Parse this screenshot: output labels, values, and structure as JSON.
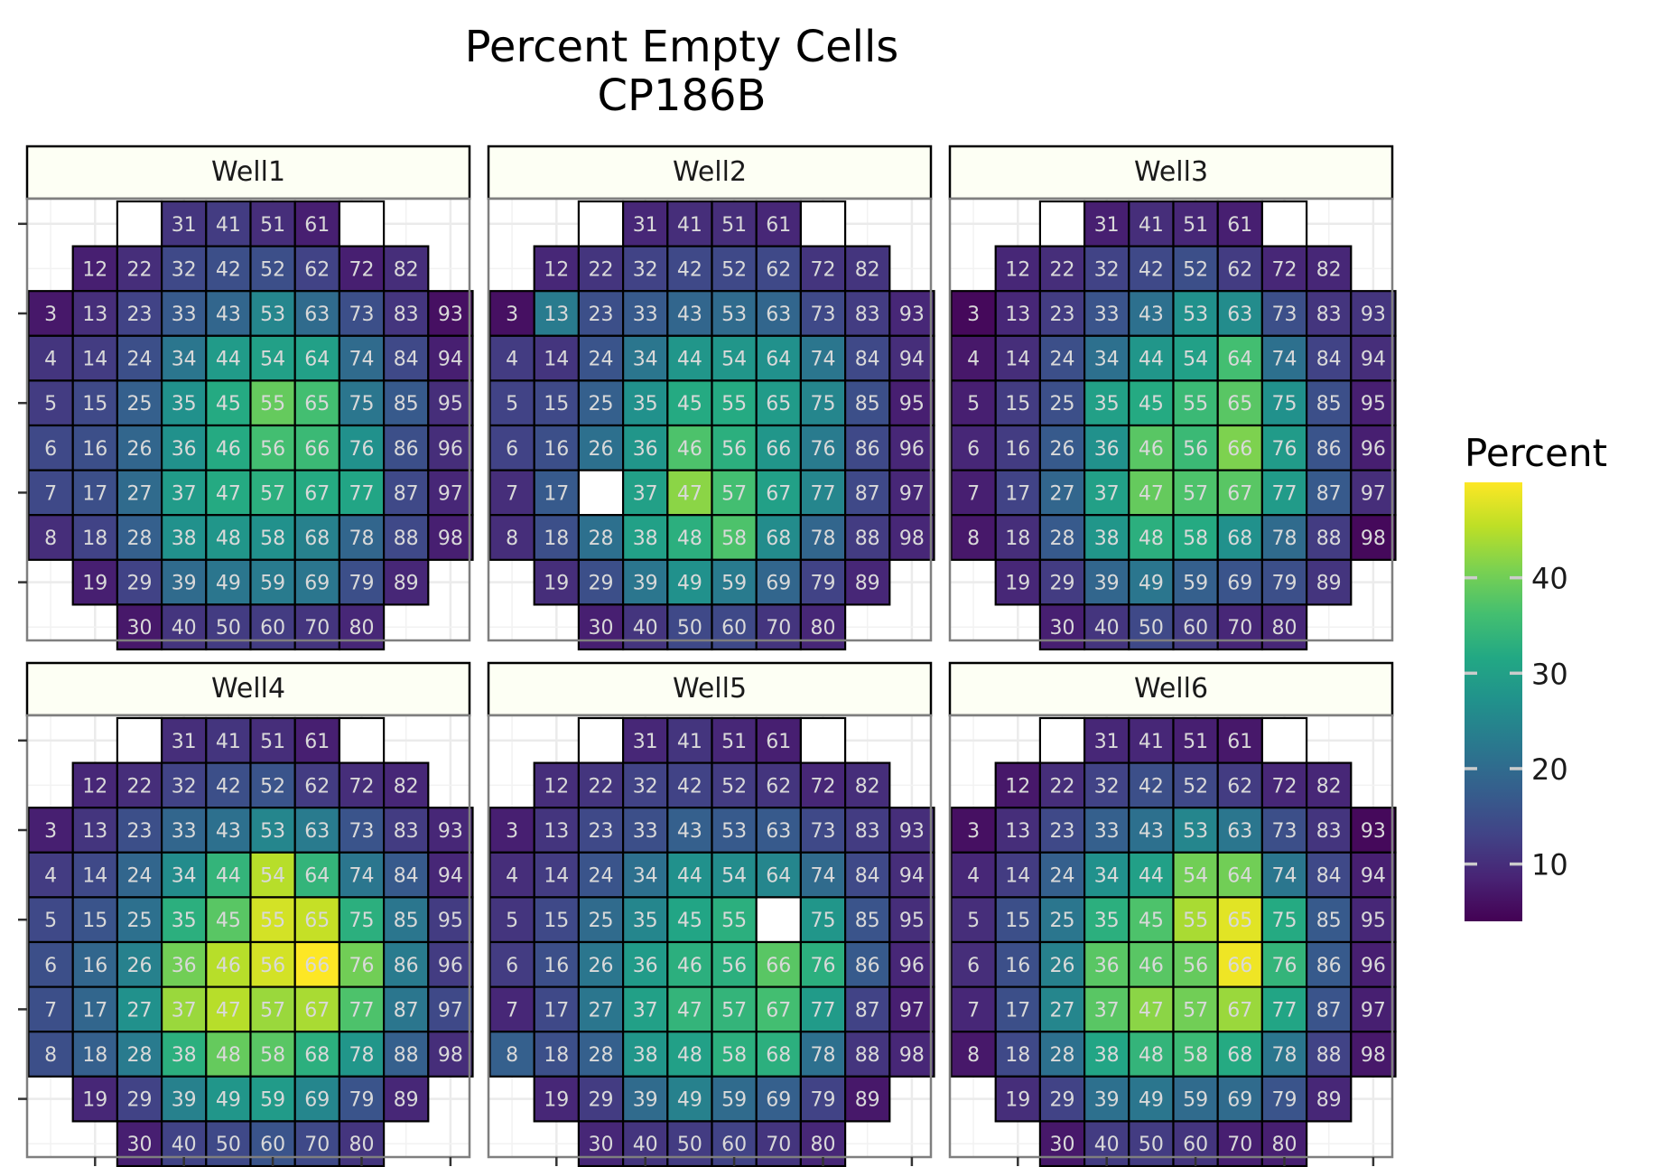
{
  "chart_data": {
    "type": "heatmap",
    "title": "Percent Empty Cells",
    "subtitle": "CP186B",
    "legend": {
      "title": "Percent",
      "placement": "right",
      "range": [
        4,
        50
      ],
      "ticks": [
        10,
        20,
        30,
        40
      ],
      "colors": [
        "#440154",
        "#482475",
        "#414487",
        "#355f8d",
        "#2a788e",
        "#21918c",
        "#22a884",
        "#44bf70",
        "#7ad151",
        "#bddf26",
        "#fde725"
      ]
    },
    "empty_color": "#ffffff",
    "strip_fill": "#fdfff4",
    "layout": {
      "columns": [
        1,
        2,
        3,
        4,
        5,
        6,
        7,
        8,
        9,
        10
      ],
      "rows": [
        1,
        2,
        3,
        4,
        5,
        6,
        7,
        8,
        9,
        10
      ],
      "rows_per_column": {
        "1": [
          3,
          4,
          5,
          6,
          7,
          8
        ],
        "2": [
          2,
          3,
          4,
          5,
          6,
          7,
          8,
          9
        ],
        "3": [
          1,
          2,
          3,
          4,
          5,
          6,
          7,
          8,
          9,
          10
        ],
        "4": [
          1,
          2,
          3,
          4,
          5,
          6,
          7,
          8,
          9,
          10
        ],
        "5": [
          1,
          2,
          3,
          4,
          5,
          6,
          7,
          8,
          9,
          10
        ],
        "6": [
          1,
          2,
          3,
          4,
          5,
          6,
          7,
          8,
          9,
          10
        ],
        "7": [
          1,
          2,
          3,
          4,
          5,
          6,
          7,
          8,
          9,
          10
        ],
        "8": [
          1,
          2,
          3,
          4,
          5,
          6,
          7,
          8,
          9,
          10
        ],
        "9": [
          2,
          3,
          4,
          5,
          6,
          7,
          8,
          9
        ],
        "10": [
          3,
          4,
          5,
          6,
          7,
          8
        ]
      }
    },
    "wells": [
      {
        "name": "Well1",
        "values": {
          "3": 7,
          "4": 11,
          "5": 12,
          "6": 14,
          "7": 14,
          "8": 10,
          "12": 8,
          "13": 10,
          "14": 12,
          "15": 14,
          "16": 15,
          "17": 15,
          "18": 13,
          "19": 8,
          "22": 10,
          "23": 13,
          "24": 15,
          "25": 18,
          "26": 19,
          "27": 20,
          "28": 18,
          "29": 13,
          "30": 7,
          "31": 11,
          "32": 14,
          "33": 17,
          "34": 22,
          "35": 27,
          "36": 27,
          "37": 29,
          "38": 27,
          "39": 20,
          "40": 11,
          "41": 12,
          "42": 15,
          "43": 19,
          "44": 29,
          "45": 32,
          "46": 32,
          "47": 32,
          "48": 28,
          "49": 22,
          "50": 12,
          "51": 10,
          "52": 15,
          "53": 25,
          "54": 30,
          "55": 39,
          "56": 36,
          "57": 33,
          "58": 27,
          "59": 23,
          "60": 12,
          "61": 8,
          "62": 13,
          "63": 20,
          "64": 30,
          "65": 36,
          "66": 35,
          "67": 32,
          "68": 24,
          "69": 22,
          "70": 11,
          "72": 8,
          "73": 15,
          "74": 20,
          "75": 22,
          "76": 27,
          "77": 31,
          "78": 19,
          "79": 15,
          "80": 9,
          "82": 10,
          "83": 11,
          "84": 14,
          "85": 17,
          "86": 15,
          "87": 14,
          "88": 14,
          "89": 9,
          "93": 6,
          "94": 8,
          "95": 10,
          "96": 10,
          "97": 9,
          "98": 8
        }
      },
      {
        "name": "Well2",
        "values": {
          "3": 6,
          "4": 12,
          "5": 13,
          "6": 13,
          "7": 10,
          "8": 10,
          "12": 9,
          "13": 23,
          "14": 11,
          "15": 14,
          "16": 15,
          "17": 17,
          "18": 15,
          "19": 10,
          "22": 11,
          "23": 15,
          "24": 16,
          "25": 18,
          "26": 21,
          "27": null,
          "28": 21,
          "29": 15,
          "30": 8,
          "31": 9,
          "32": 13,
          "33": 17,
          "34": 22,
          "35": 27,
          "36": 28,
          "37": 30,
          "38": 30,
          "39": 22,
          "40": 11,
          "41": 10,
          "42": 14,
          "43": 19,
          "44": 28,
          "45": 32,
          "46": 37,
          "47": 42,
          "48": 33,
          "49": 27,
          "50": 14,
          "51": 10,
          "52": 14,
          "53": 20,
          "54": 28,
          "55": 32,
          "56": 33,
          "57": 36,
          "58": 37,
          "59": 23,
          "60": 14,
          "61": 9,
          "62": 14,
          "63": 19,
          "64": 27,
          "65": 29,
          "66": 28,
          "67": 30,
          "68": 26,
          "69": 19,
          "70": 11,
          "72": 11,
          "73": 14,
          "74": 22,
          "75": 25,
          "76": 23,
          "77": 25,
          "78": 19,
          "79": 13,
          "80": 9,
          "82": 11,
          "83": 12,
          "84": 14,
          "85": 15,
          "86": 14,
          "87": 14,
          "88": 12,
          "89": 9,
          "93": 9,
          "94": 10,
          "95": 8,
          "96": 9,
          "97": 9,
          "98": 9
        }
      },
      {
        "name": "Well3",
        "values": {
          "3": 5,
          "4": 7,
          "5": 8,
          "6": 9,
          "7": 8,
          "8": 7,
          "12": 9,
          "13": 9,
          "14": 10,
          "15": 12,
          "16": 12,
          "17": 13,
          "18": 10,
          "19": 9,
          "22": 10,
          "23": 12,
          "24": 15,
          "25": 15,
          "26": 17,
          "27": 19,
          "28": 17,
          "29": 12,
          "30": 8,
          "31": 8,
          "32": 13,
          "33": 16,
          "34": 21,
          "35": 30,
          "36": 27,
          "37": 30,
          "38": 28,
          "39": 19,
          "40": 11,
          "41": 10,
          "42": 14,
          "43": 21,
          "44": 28,
          "45": 32,
          "46": 38,
          "47": 39,
          "48": 33,
          "49": 22,
          "50": 14,
          "51": 9,
          "52": 15,
          "53": 27,
          "54": 30,
          "55": 35,
          "56": 35,
          "57": 37,
          "58": 32,
          "59": 18,
          "60": 12,
          "61": 8,
          "62": 12,
          "63": 26,
          "64": 36,
          "65": 38,
          "66": 41,
          "67": 38,
          "68": 27,
          "69": 16,
          "70": 9,
          "72": 9,
          "73": 15,
          "74": 21,
          "75": 27,
          "76": 29,
          "77": 29,
          "78": 20,
          "79": 15,
          "80": 9,
          "82": 9,
          "83": 11,
          "84": 13,
          "85": 15,
          "86": 16,
          "87": 17,
          "88": 12,
          "89": 11,
          "93": 11,
          "94": 10,
          "95": 8,
          "96": 8,
          "97": 10,
          "98": 5
        }
      },
      {
        "name": "Well4",
        "values": {
          "3": 8,
          "4": 12,
          "5": 14,
          "6": 15,
          "7": 15,
          "8": 15,
          "12": 9,
          "13": 11,
          "14": 14,
          "15": 16,
          "16": 19,
          "17": 19,
          "18": 18,
          "19": 9,
          "22": 10,
          "23": 15,
          "24": 19,
          "25": 21,
          "26": 24,
          "27": 27,
          "28": 23,
          "29": 13,
          "30": 8,
          "31": 10,
          "32": 13,
          "33": 19,
          "34": 26,
          "35": 33,
          "36": 40,
          "37": 43,
          "38": 33,
          "39": 24,
          "40": 13,
          "41": 11,
          "42": 15,
          "43": 21,
          "44": 34,
          "45": 38,
          "46": 45,
          "47": 45,
          "48": 39,
          "49": 28,
          "50": 14,
          "51": 10,
          "52": 16,
          "53": 25,
          "54": 45,
          "55": 47,
          "56": 47,
          "57": 43,
          "58": 38,
          "59": 29,
          "60": 16,
          "61": 8,
          "62": 12,
          "63": 23,
          "64": 34,
          "65": 46,
          "66": 50,
          "67": 44,
          "68": 33,
          "69": 25,
          "70": 14,
          "72": 10,
          "73": 16,
          "74": 22,
          "75": 33,
          "76": 40,
          "77": 37,
          "78": 28,
          "79": 16,
          "80": 11,
          "82": 9,
          "83": 12,
          "84": 17,
          "85": 22,
          "86": 23,
          "87": 22,
          "88": 18,
          "89": 9,
          "93": 9,
          "94": 9,
          "95": 12,
          "96": 12,
          "97": 14,
          "98": 10
        }
      },
      {
        "name": "Well5",
        "values": {
          "3": 8,
          "4": 10,
          "5": 11,
          "6": 12,
          "7": 9,
          "8": 18,
          "12": 10,
          "13": 11,
          "14": 12,
          "15": 14,
          "16": 15,
          "17": 14,
          "18": 15,
          "19": 9,
          "22": 11,
          "23": 14,
          "24": 16,
          "25": 20,
          "26": 22,
          "27": 22,
          "28": 18,
          "29": 12,
          "30": 9,
          "31": 9,
          "32": 13,
          "33": 15,
          "34": 21,
          "35": 25,
          "36": 29,
          "37": 30,
          "38": 28,
          "39": 20,
          "40": 11,
          "41": 11,
          "42": 13,
          "43": 18,
          "44": 27,
          "45": 31,
          "46": 33,
          "47": 34,
          "48": 30,
          "49": 24,
          "50": 12,
          "51": 9,
          "52": 12,
          "53": 17,
          "54": 26,
          "55": 33,
          "56": 33,
          "57": 34,
          "58": 33,
          "59": 20,
          "60": 13,
          "61": 8,
          "62": 11,
          "63": 17,
          "64": 25,
          "65": null,
          "66": 38,
          "67": 36,
          "68": 33,
          "69": 18,
          "70": 11,
          "72": 9,
          "73": 14,
          "74": 20,
          "75": 28,
          "76": 33,
          "77": 29,
          "78": 21,
          "79": 13,
          "80": 9,
          "82": 10,
          "83": 12,
          "84": 14,
          "85": 16,
          "86": 17,
          "87": 13,
          "88": 11,
          "89": 7,
          "93": 10,
          "94": 10,
          "95": 10,
          "96": 9,
          "97": 8,
          "98": 9
        }
      },
      {
        "name": "Well6",
        "values": {
          "3": 6,
          "4": 9,
          "5": 10,
          "6": 10,
          "7": 9,
          "8": 7,
          "12": 7,
          "13": 10,
          "14": 12,
          "15": 15,
          "16": 15,
          "17": 15,
          "18": 14,
          "19": 10,
          "22": 10,
          "23": 14,
          "24": 18,
          "25": 22,
          "26": 24,
          "27": 25,
          "28": 21,
          "29": 13,
          "30": 7,
          "31": 9,
          "32": 13,
          "33": 18,
          "34": 27,
          "35": 33,
          "36": 38,
          "37": 38,
          "38": 31,
          "39": 21,
          "40": 12,
          "41": 9,
          "42": 15,
          "43": 21,
          "44": 30,
          "45": 37,
          "46": 38,
          "47": 42,
          "48": 34,
          "49": 22,
          "50": 12,
          "51": 8,
          "52": 14,
          "53": 25,
          "54": 40,
          "55": 44,
          "56": 39,
          "57": 40,
          "58": 35,
          "59": 20,
          "60": 11,
          "61": 7,
          "62": 12,
          "63": 22,
          "64": 40,
          "65": 48,
          "66": 49,
          "67": 43,
          "68": 32,
          "69": 20,
          "70": 8,
          "72": 9,
          "73": 15,
          "74": 22,
          "75": 32,
          "76": 34,
          "77": 31,
          "78": 22,
          "79": 16,
          "80": 8,
          "82": 9,
          "83": 11,
          "84": 14,
          "85": 17,
          "86": 17,
          "87": 16,
          "88": 13,
          "89": 9,
          "93": 5,
          "94": 8,
          "95": 9,
          "96": 8,
          "97": 8,
          "98": 7
        }
      }
    ]
  }
}
